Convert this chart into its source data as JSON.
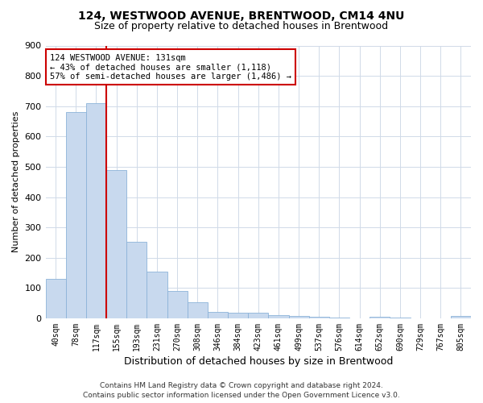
{
  "title": "124, WESTWOOD AVENUE, BRENTWOOD, CM14 4NU",
  "subtitle": "Size of property relative to detached houses in Brentwood",
  "xlabel": "Distribution of detached houses by size in Brentwood",
  "ylabel": "Number of detached properties",
  "footer_line1": "Contains HM Land Registry data © Crown copyright and database right 2024.",
  "footer_line2": "Contains public sector information licensed under the Open Government Licence v3.0.",
  "bar_color": "#c8d9ee",
  "bar_edge_color": "#8cb3d9",
  "grid_color": "#d0dae8",
  "annotation_box_color": "#cc0000",
  "vline_color": "#cc0000",
  "categories": [
    "40sqm",
    "78sqm",
    "117sqm",
    "155sqm",
    "193sqm",
    "231sqm",
    "270sqm",
    "308sqm",
    "346sqm",
    "384sqm",
    "423sqm",
    "461sqm",
    "499sqm",
    "537sqm",
    "576sqm",
    "614sqm",
    "652sqm",
    "690sqm",
    "729sqm",
    "767sqm",
    "805sqm"
  ],
  "values": [
    130,
    680,
    710,
    490,
    253,
    153,
    90,
    52,
    22,
    18,
    18,
    10,
    7,
    5,
    2,
    0,
    5,
    2,
    1,
    1,
    8
  ],
  "ylim": [
    0,
    900
  ],
  "yticks": [
    0,
    100,
    200,
    300,
    400,
    500,
    600,
    700,
    800,
    900
  ],
  "property_label": "124 WESTWOOD AVENUE: 131sqm",
  "annotation_line1": "← 43% of detached houses are smaller (1,118)",
  "annotation_line2": "57% of semi-detached houses are larger (1,486) →",
  "vline_x_index": 2.5,
  "background_color": "#ffffff",
  "title_fontsize": 10,
  "subtitle_fontsize": 9,
  "footer_fontsize": 6.5,
  "ylabel_fontsize": 8,
  "xlabel_fontsize": 9,
  "tick_fontsize": 7,
  "annot_fontsize": 7.5
}
